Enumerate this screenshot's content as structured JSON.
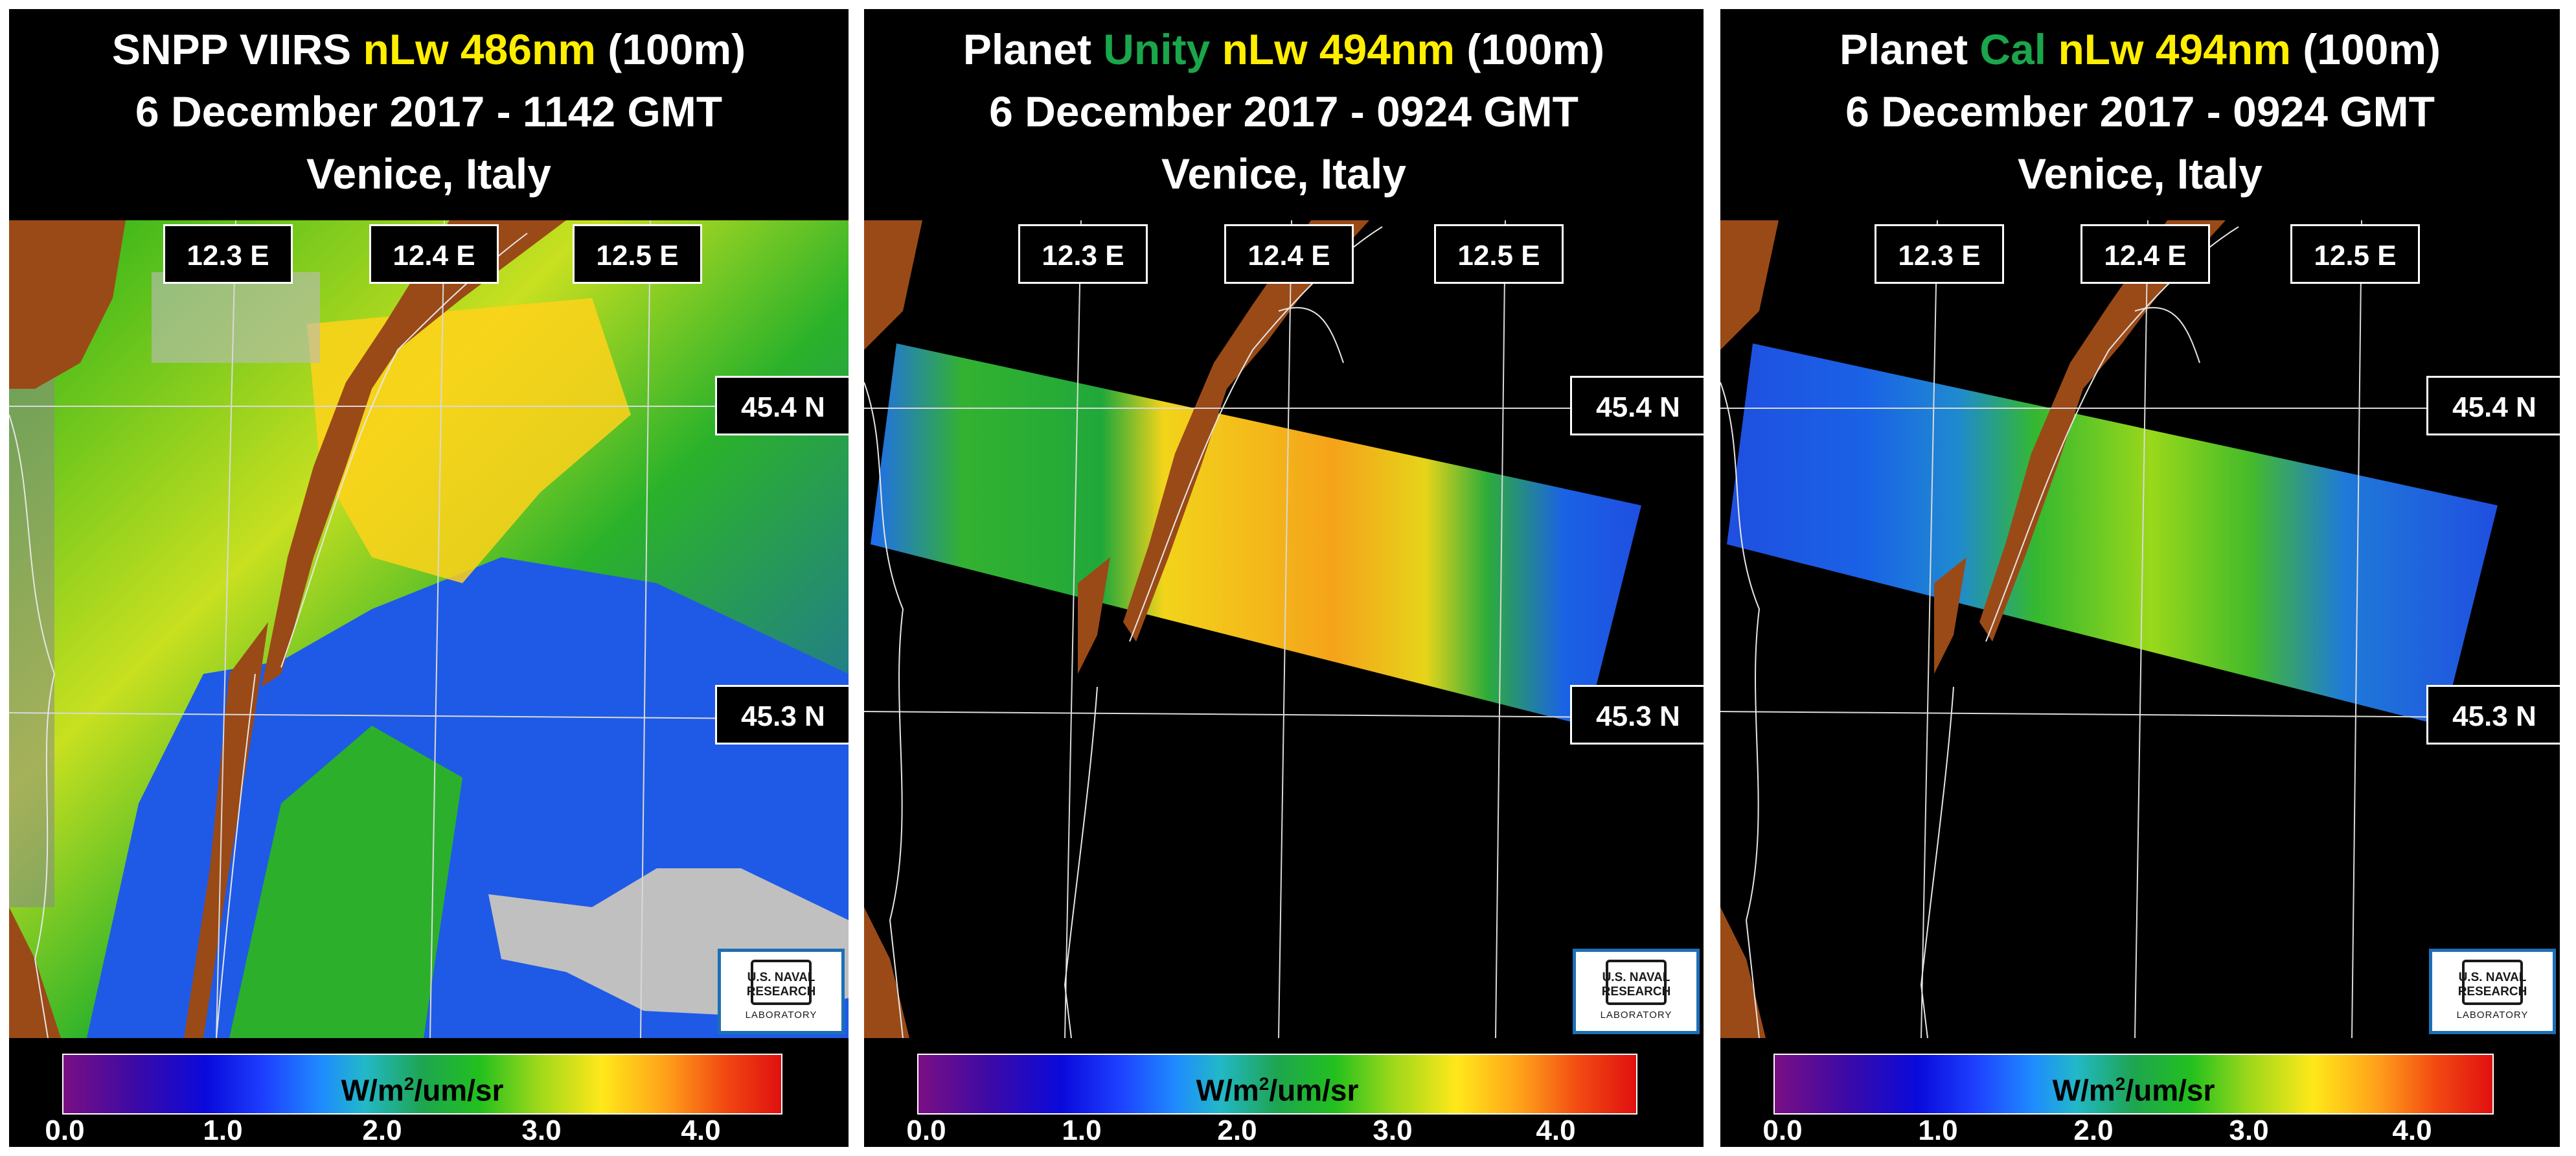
{
  "panels": [
    {
      "title_line1": [
        "SNPP VIIRS ",
        "nLw 486nm",
        " (100m)"
      ],
      "title_line1_colors": [
        "#ffffff",
        "#ffee00",
        "#ffffff"
      ],
      "title_line2": "6 December 2017 - 1142 GMT",
      "title_line3": "Venice, Italy",
      "lon_labels": [
        "12.3 E",
        "12.4 E",
        "12.5 E"
      ],
      "lat_labels": [
        "45.4 N",
        "45.3 N"
      ],
      "logo": {
        "line1": "U.S. NAVAL",
        "line2": "RESEARCH",
        "line3": "LABORATORY"
      },
      "colorbar": {
        "units": "W/m",
        "units_sup": "2",
        "units_tail": "/um/sr",
        "ticks": [
          "0.0",
          "1.0",
          "2.0",
          "3.0",
          "4.0"
        ]
      }
    },
    {
      "title_line1": [
        "Planet ",
        "Unity",
        " nLw 494nm",
        " (100m)"
      ],
      "title_line1_colors": [
        "#ffffff",
        "#1aa64a",
        "#ffee00",
        "#ffffff"
      ],
      "title_line2": "6 December 2017 - 0924 GMT",
      "title_line3": "Venice, Italy",
      "lon_labels": [
        "12.3 E",
        "12.4 E",
        "12.5 E"
      ],
      "lat_labels": [
        "45.4 N",
        "45.3 N"
      ],
      "logo": {
        "line1": "U.S. NAVAL",
        "line2": "RESEARCH",
        "line3": "LABORATORY"
      },
      "colorbar": {
        "units": "W/m",
        "units_sup": "2",
        "units_tail": "/um/sr",
        "ticks": [
          "0.0",
          "1.0",
          "2.0",
          "3.0",
          "4.0"
        ]
      }
    },
    {
      "title_line1": [
        "Planet ",
        "Cal",
        " nLw 494nm",
        " (100m)"
      ],
      "title_line1_colors": [
        "#ffffff",
        "#1aa64a",
        "#ffee00",
        "#ffffff"
      ],
      "title_line2": "6 December 2017 - 0924 GMT",
      "title_line3": "Venice, Italy",
      "lon_labels": [
        "12.3 E",
        "12.4 E",
        "12.5 E"
      ],
      "lat_labels": [
        "45.4 N",
        "45.3 N"
      ],
      "logo": {
        "line1": "U.S. NAVAL",
        "line2": "RESEARCH",
        "line3": "LABORATORY"
      },
      "colorbar": {
        "units": "W/m",
        "units_sup": "2",
        "units_tail": "/um/sr",
        "ticks": [
          "0.0",
          "1.0",
          "2.0",
          "3.0",
          "4.0"
        ]
      }
    }
  ],
  "colors": {
    "land": "#9a4a17",
    "water_background": "#000000",
    "gridline": "#d9d9d9",
    "logo_border": "#1d6fb5"
  }
}
